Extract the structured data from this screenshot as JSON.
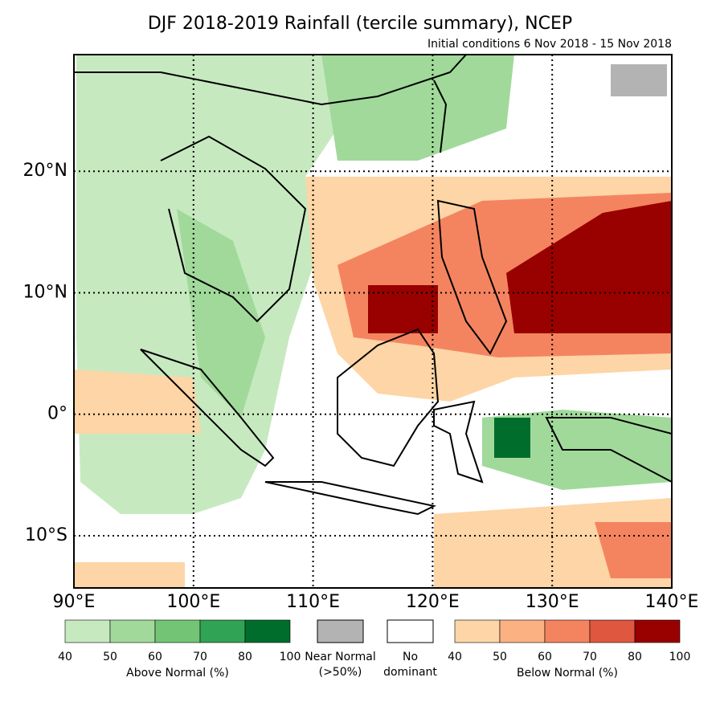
{
  "map": {
    "title": "DJF 2018-2019 Rainfall (tercile summary), NCEP",
    "subtitle": "Initial conditions 6 Nov 2018 - 15 Nov 2018",
    "lon_ticks": [
      {
        "value": 90,
        "label": "90°E"
      },
      {
        "value": 100,
        "label": "100°E"
      },
      {
        "value": 110,
        "label": "110°E"
      },
      {
        "value": 120,
        "label": "120°E"
      },
      {
        "value": 130,
        "label": "130°E"
      },
      {
        "value": 140,
        "label": "140°E"
      }
    ],
    "lat_ticks": [
      {
        "value": 20,
        "label": "20°N"
      },
      {
        "value": 10,
        "label": "10°N"
      },
      {
        "value": 0,
        "label": "0°"
      },
      {
        "value": -10,
        "label": "10°S"
      }
    ],
    "lon_range": [
      90,
      140
    ],
    "lat_range": [
      -14.3,
      29.6
    ],
    "above_normal": {
      "label": "Above Normal (%)",
      "ticks": [
        40,
        50,
        60,
        70,
        80,
        100
      ],
      "colors": [
        "#c7e9c0",
        "#a1d99b",
        "#74c476",
        "#31a354",
        "#006d2c"
      ]
    },
    "near_normal": {
      "label": "Near Normal",
      "sublabel": "(>50%)",
      "color": "#b3b3b3"
    },
    "no_dominant": {
      "label": "No",
      "sublabel": "dominant",
      "color": "#ffffff"
    },
    "below_normal": {
      "label": "Below Normal (%)",
      "ticks": [
        40,
        50,
        60,
        70,
        80,
        100
      ],
      "colors": [
        "#fdd5a6",
        "#fcb183",
        "#f4845f",
        "#e0573f",
        "#990000"
      ]
    }
  }
}
